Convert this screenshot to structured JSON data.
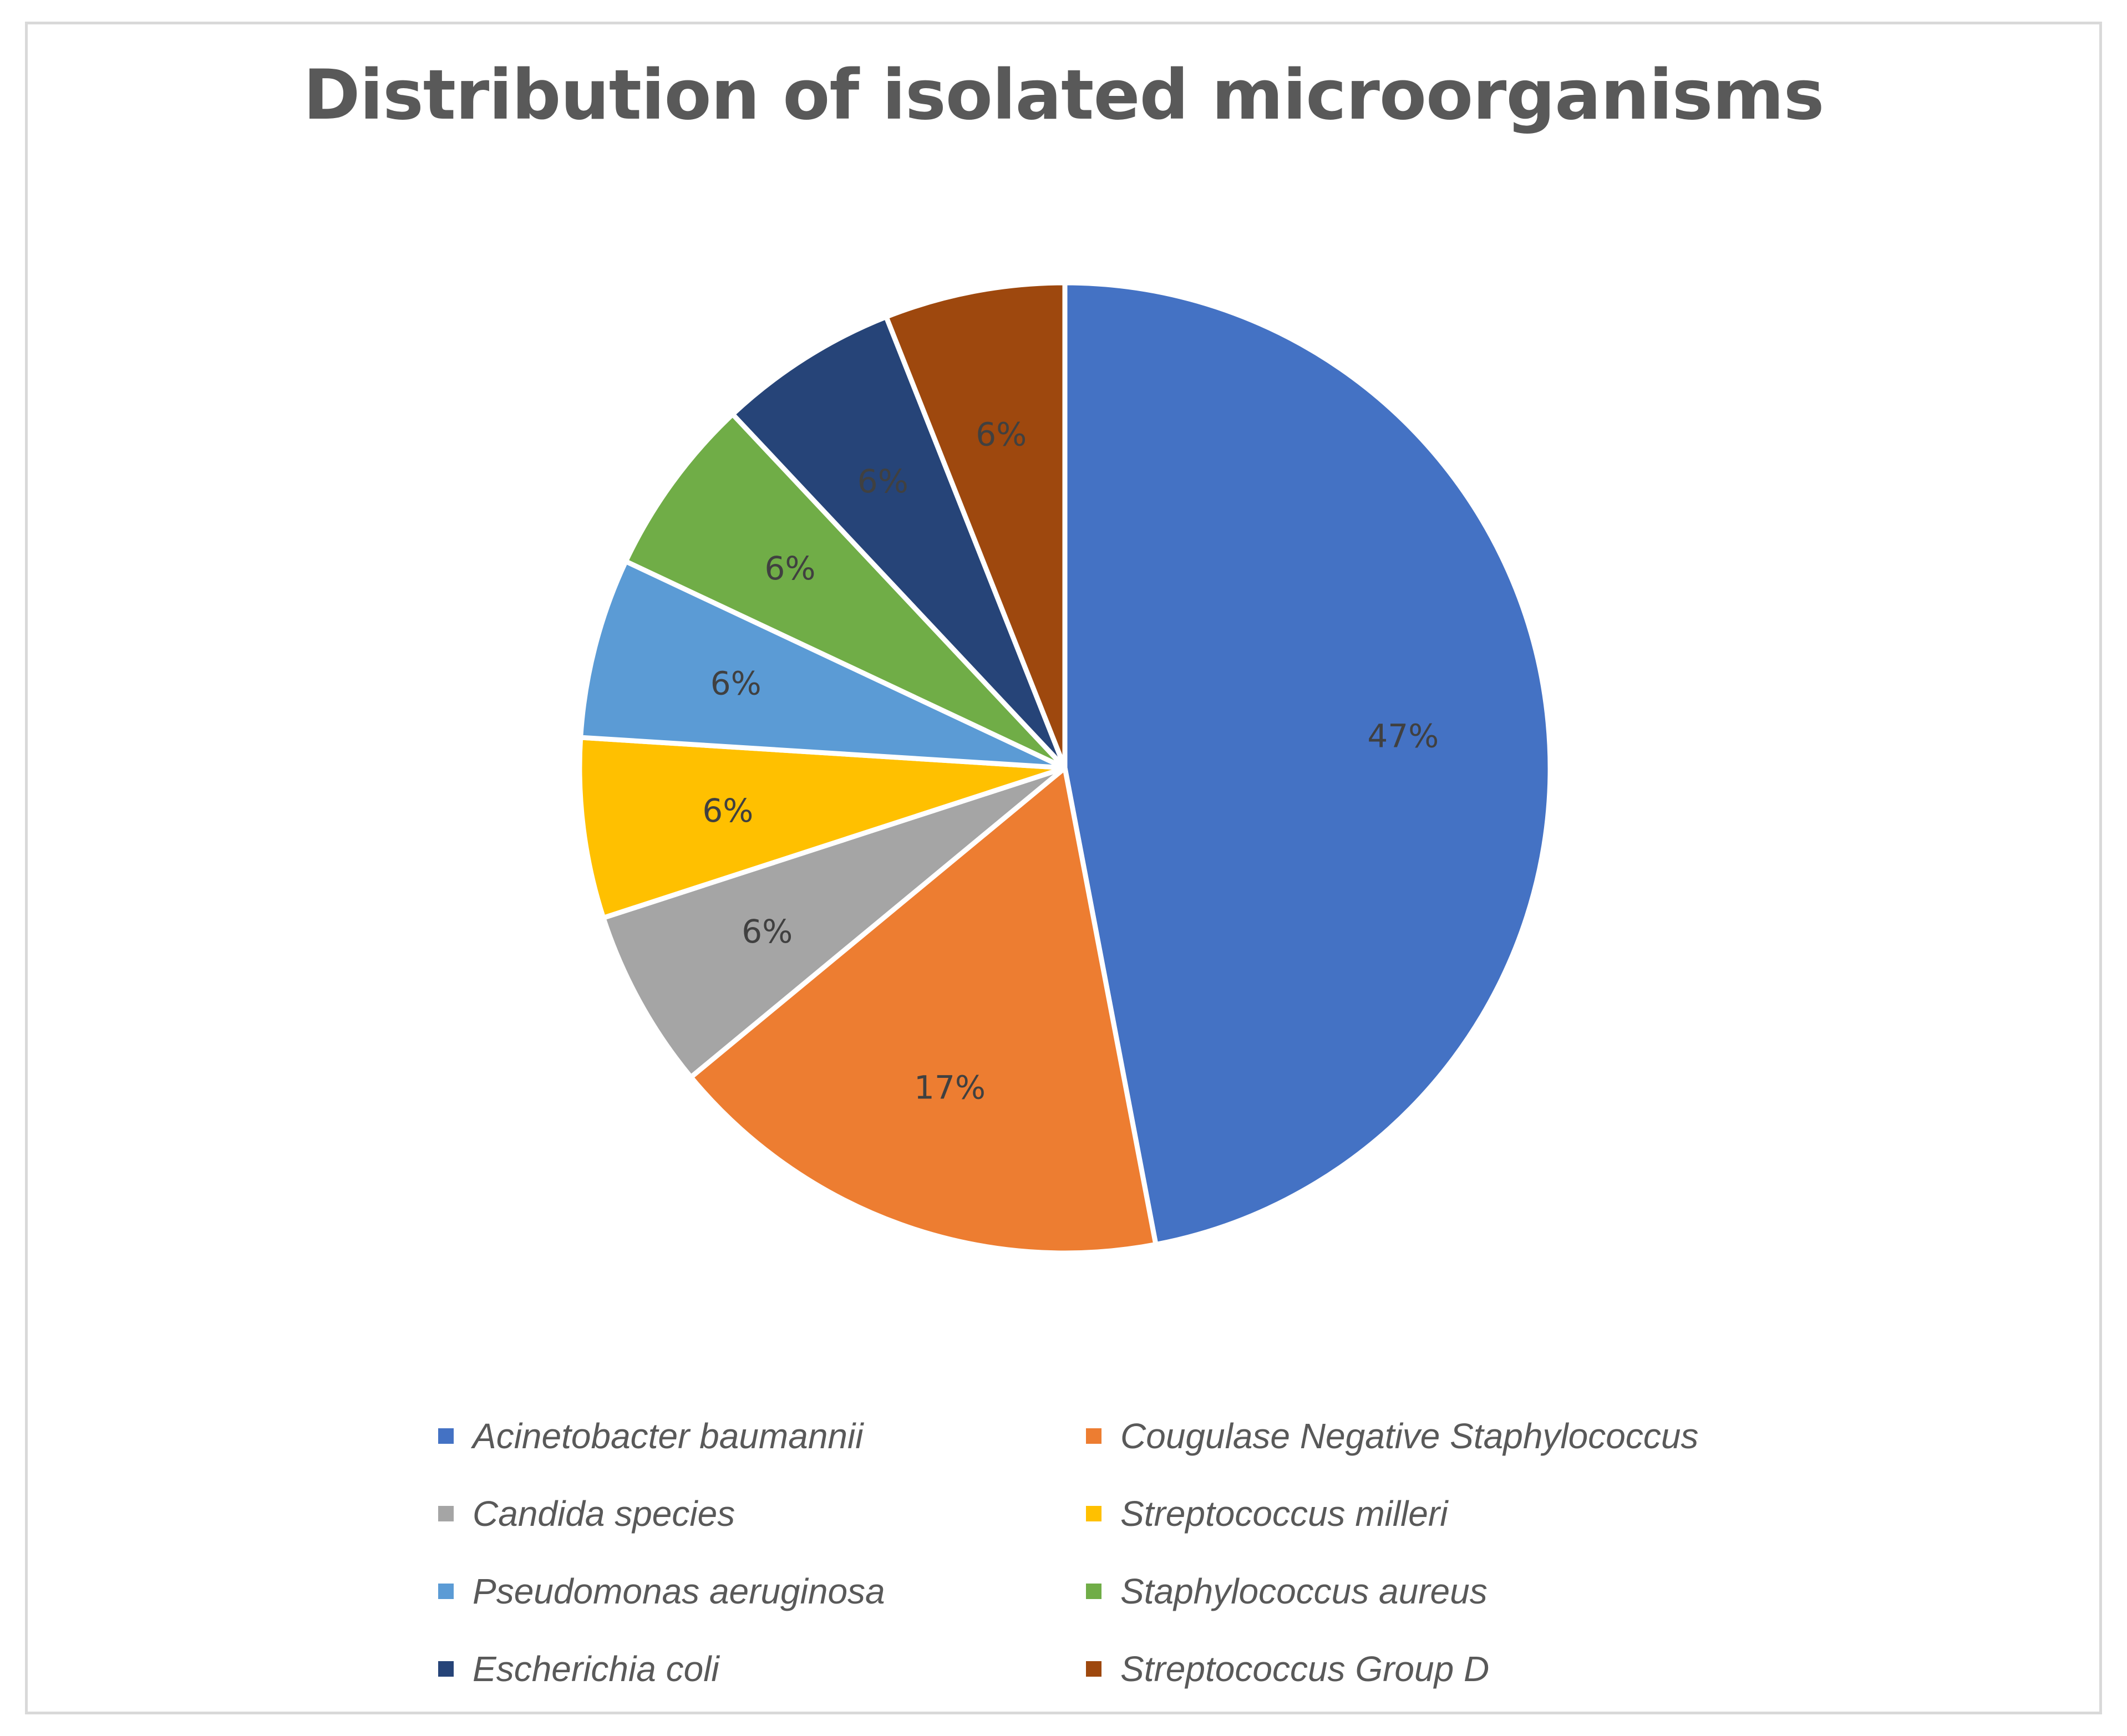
{
  "chart_data": {
    "type": "pie",
    "title": "Distribution of isolated microorganisms",
    "start_angle_deg": 0,
    "direction": "clockwise",
    "legend_position": "bottom",
    "categories": [
      "Acinetobacter baumannii",
      "Cougulase Negative Staphylococcus",
      "Candida species",
      "Streptococcus milleri",
      "Pseudomonas aeruginosa",
      "Staphylococcus aureus",
      "Escherichia coli",
      "Streptococcus Group D"
    ],
    "values": [
      47,
      17,
      6,
      6,
      6,
      6,
      6,
      6
    ],
    "labels": [
      "47%",
      "17%",
      "6%",
      "6%",
      "6%",
      "6%",
      "6%",
      "6%"
    ],
    "colors": [
      "#4472C4",
      "#ED7D31",
      "#A5A5A5",
      "#FFC000",
      "#5B9BD5",
      "#70AD47",
      "#264478",
      "#9E480E"
    ]
  }
}
